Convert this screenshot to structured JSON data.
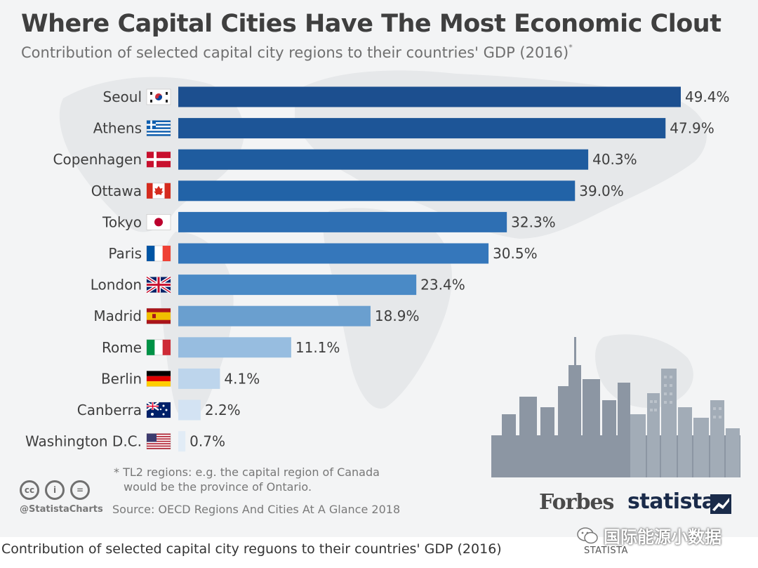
{
  "title": "Where Capital Cities Have The Most Economic Clout",
  "subtitle": "Contribution of selected capital city regions to their countries' GDP (2016)",
  "subtitle_mark": "*",
  "chart_data": {
    "type": "bar",
    "orientation": "horizontal",
    "title": "Where Capital Cities Have The Most Economic Clout",
    "subtitle": "Contribution of selected capital city regions to their countries' GDP (2016)",
    "categories": [
      "Seoul",
      "Athens",
      "Copenhagen",
      "Ottawa",
      "Tokyo",
      "Paris",
      "London",
      "Madrid",
      "Rome",
      "Berlin",
      "Canberra",
      "Washington D.C."
    ],
    "flags": [
      "south-korea",
      "greece",
      "denmark",
      "canada",
      "japan",
      "france",
      "united-kingdom",
      "spain",
      "italy",
      "germany",
      "australia",
      "united-states"
    ],
    "values": [
      49.4,
      47.9,
      40.3,
      39.0,
      32.3,
      30.5,
      23.4,
      18.9,
      11.1,
      4.1,
      2.2,
      0.7
    ],
    "value_labels": [
      "49.4%",
      "47.9%",
      "40.3%",
      "39.0%",
      "32.3%",
      "30.5%",
      "23.4%",
      "18.9%",
      "11.1%",
      "4.1%",
      "2.2%",
      "0.7%"
    ],
    "unit": "%",
    "xlim": [
      0,
      49.4
    ],
    "colors": [
      "#1c4f8f",
      "#1d5597",
      "#1f5c9f",
      "#2263a7",
      "#2e6fb3",
      "#3577bb",
      "#4a8ac6",
      "#6a9fcf",
      "#97bde0",
      "#bdd5ec",
      "#d3e3f3",
      "#e2ecf6"
    ]
  },
  "footnote": {
    "line1": "* TL2 regions: e.g. the capital region of Canada",
    "line2": "would be the province of Ontario."
  },
  "source": "Source: OECD Regions And Cities At A Glance 2018",
  "handle": "@StatistaCharts",
  "license_icons": [
    "cc-icon",
    "by-icon",
    "nd-icon"
  ],
  "license_glyphs": [
    "cc",
    "i",
    "="
  ],
  "logos": {
    "forbes": "Forbes",
    "statista": "statista"
  },
  "caption": "Contribution of selected capital city reguons to their countries' GDP (2016)",
  "caption_brand": "STATISTA",
  "watermark": "国际能源小数据"
}
